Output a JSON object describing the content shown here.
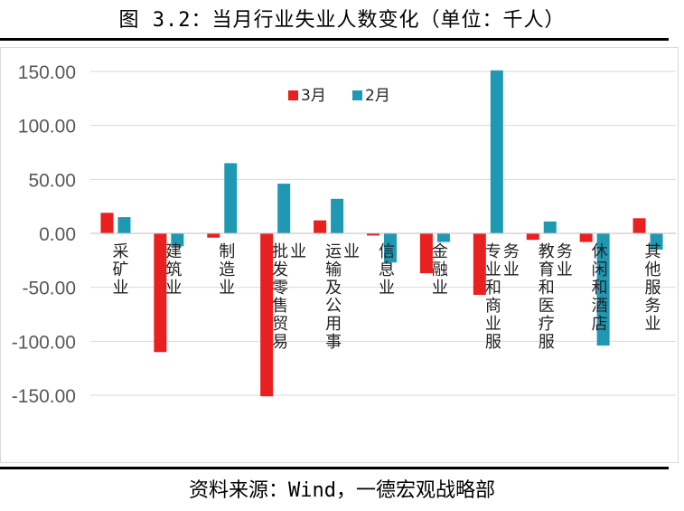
{
  "title": "图 3.2：当月行业失业人数变化（单位：千人）",
  "source": "资料来源：Wind，一德宏观战略部",
  "chart_data": {
    "type": "bar",
    "title": "图 3.2：当月行业失业人数变化（单位：千人）",
    "xlabel": "",
    "ylabel": "",
    "ylim": [
      -150,
      150
    ],
    "yticks": [
      "150.00",
      "100.00",
      "50.00",
      "0.00",
      "-50.00",
      "-100.00",
      "-150.00"
    ],
    "ytick_values": [
      150,
      100,
      50,
      0,
      -50,
      -100,
      -150
    ],
    "grid": true,
    "legend_position": "top-center",
    "categories": [
      [
        "采矿业"
      ],
      [
        "建筑业"
      ],
      [
        "制造业"
      ],
      [
        "批发零售贸易",
        "业"
      ],
      [
        "运输及公用事",
        "业"
      ],
      [
        "信息业"
      ],
      [
        "金融业"
      ],
      [
        "专业和商业服",
        "务业"
      ],
      [
        "教育和医疗服",
        "务业"
      ],
      [
        "休闲和酒店"
      ],
      [
        "其他服务业"
      ]
    ],
    "series": [
      {
        "name": "3月",
        "color": "#e8201f",
        "values": [
          19,
          -110,
          -4,
          -151,
          12,
          -2,
          -37,
          -57,
          -6,
          -8,
          14
        ]
      },
      {
        "name": "2月",
        "color": "#1f98b4",
        "values": [
          15,
          -12,
          65,
          46,
          32,
          -27,
          -8,
          151,
          11,
          -104,
          -15
        ]
      }
    ]
  }
}
